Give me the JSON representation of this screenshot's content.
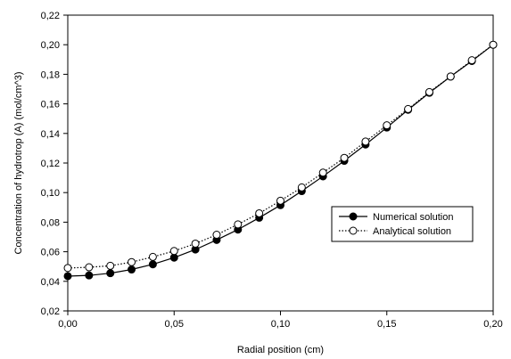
{
  "chart_data": {
    "type": "line",
    "title": "",
    "xlabel": "Radial position (cm)",
    "ylabel": "Concentration of hydrotrop (A) (mol/cm^3)",
    "xlim": [
      0.0,
      0.2
    ],
    "ylim": [
      0.02,
      0.22
    ],
    "x_ticks": [
      "0,00",
      "0,05",
      "0,10",
      "0,15",
      "0,20"
    ],
    "x_tick_values": [
      0.0,
      0.05,
      0.1,
      0.15,
      0.2
    ],
    "y_ticks": [
      "0,02",
      "0,04",
      "0,06",
      "0,08",
      "0,10",
      "0,12",
      "0,14",
      "0,16",
      "0,18",
      "0,20",
      "0,22"
    ],
    "y_tick_values": [
      0.02,
      0.04,
      0.06,
      0.08,
      0.1,
      0.12,
      0.14,
      0.16,
      0.18,
      0.2,
      0.22
    ],
    "grid": false,
    "legend_position": "right",
    "x": [
      0.0,
      0.01,
      0.02,
      0.03,
      0.04,
      0.05,
      0.06,
      0.07,
      0.08,
      0.09,
      0.1,
      0.11,
      0.12,
      0.13,
      0.14,
      0.15,
      0.16,
      0.17,
      0.18,
      0.19,
      0.2
    ],
    "series": [
      {
        "name": "Numerical solution",
        "line_style": "solid",
        "marker": "filled-circle",
        "color": "#000000",
        "values": [
          0.0435,
          0.044,
          0.0455,
          0.048,
          0.0515,
          0.056,
          0.0615,
          0.068,
          0.075,
          0.083,
          0.0915,
          0.101,
          0.111,
          0.1215,
          0.1325,
          0.144,
          0.156,
          0.1675,
          0.1785,
          0.189,
          0.2
        ]
      },
      {
        "name": "Analytical solution",
        "line_style": "dotted",
        "marker": "open-circle",
        "color": "#000000",
        "values": [
          0.049,
          0.0495,
          0.0505,
          0.053,
          0.0565,
          0.0605,
          0.0655,
          0.0715,
          0.0785,
          0.086,
          0.0945,
          0.1035,
          0.1135,
          0.1235,
          0.1345,
          0.1455,
          0.1565,
          0.168,
          0.1785,
          0.1895,
          0.2
        ]
      }
    ]
  }
}
